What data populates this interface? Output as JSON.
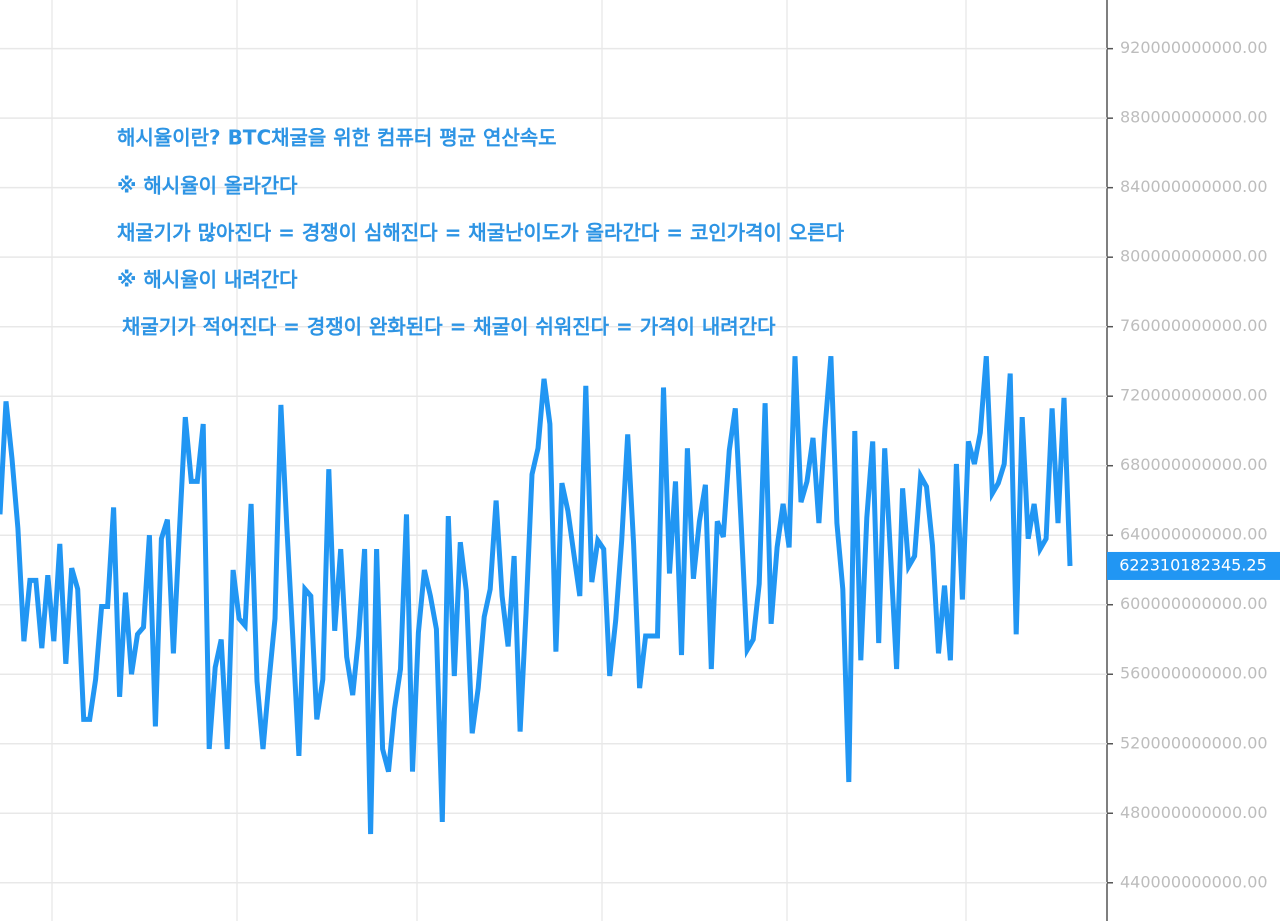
{
  "chart_data": {
    "type": "line",
    "annotations": [
      "해시율이란? BTC채굴을 위한 컴퓨터 평균 연산속도",
      "※ 해시율이 올라간다",
      "채굴기가 많아진다 = 경쟁이 심해진다 = 채굴난이도가 올라간다 = 코인가격이 오른다",
      "※ 해시율이 내려간다",
      "채굴기가 적어진다 = 경쟁이 완화된다 = 채굴이 쉬워진다 = 가격이 내려간다"
    ],
    "categories": [
      null,
      null,
      null,
      null,
      null,
      null,
      null,
      null,
      null,
      null,
      null,
      null,
      null,
      null,
      null,
      null,
      null,
      null,
      null,
      null,
      null,
      null,
      null,
      null,
      null,
      null,
      null,
      null,
      null,
      null,
      null,
      null,
      null,
      null,
      null,
      null,
      null,
      null,
      null,
      null,
      null,
      null,
      null,
      null,
      null,
      null,
      null,
      null,
      null,
      null,
      null,
      null,
      null,
      null,
      null,
      null,
      null,
      null,
      null,
      null,
      null,
      null,
      null,
      null,
      null,
      null,
      null,
      null,
      null,
      null,
      null,
      null,
      null,
      null,
      null,
      null,
      null,
      null,
      null,
      null,
      null,
      null,
      null,
      null,
      null,
      null,
      null,
      null,
      null,
      null,
      null,
      null,
      null,
      null,
      null,
      null,
      null,
      null,
      null,
      null,
      null,
      null,
      null,
      null,
      null,
      null,
      null,
      null,
      null,
      null,
      null,
      null,
      null,
      null,
      null,
      null,
      null,
      null,
      null,
      null,
      null,
      null,
      null,
      null,
      null,
      null,
      null,
      null,
      null,
      null,
      null,
      null,
      null,
      null,
      null,
      null,
      null,
      null,
      null,
      null,
      null,
      null,
      null,
      null,
      null,
      null,
      null,
      null,
      null,
      null,
      null,
      null,
      null,
      null,
      null,
      null,
      null,
      null,
      null,
      null,
      null,
      null,
      null,
      null,
      null,
      null,
      null,
      null,
      null,
      null,
      null,
      null,
      null,
      null,
      null,
      null,
      null,
      null,
      null,
      null
    ],
    "values": [
      652000000000,
      717000000000,
      684000000000,
      644000000000,
      579000000000,
      614000000000,
      614000000000,
      575000000000,
      617000000000,
      579000000000,
      635000000000,
      566000000000,
      621000000000,
      609000000000,
      534000000000,
      534000000000,
      557000000000,
      599000000000,
      599000000000,
      656000000000,
      547000000000,
      607000000000,
      560000000000,
      583000000000,
      587000000000,
      640000000000,
      530000000000,
      638000000000,
      649000000000,
      572000000000,
      641000000000,
      708000000000,
      671000000000,
      671000000000,
      704000000000,
      517000000000,
      564000000000,
      580000000000,
      517000000000,
      620000000000,
      592000000000,
      588000000000,
      658000000000,
      556000000000,
      517000000000,
      556000000000,
      592000000000,
      715000000000,
      644000000000,
      580000000000,
      513000000000,
      609000000000,
      605000000000,
      534000000000,
      557000000000,
      678000000000,
      585000000000,
      632000000000,
      570000000000,
      548000000000,
      582000000000,
      632000000000,
      468000000000,
      632000000000,
      517000000000,
      504000000000,
      540000000000,
      563000000000,
      652000000000,
      504000000000,
      584000000000,
      620000000000,
      605000000000,
      586000000000,
      475000000000,
      651000000000,
      559000000000,
      636000000000,
      608000000000,
      526000000000,
      552000000000,
      593000000000,
      609000000000,
      660000000000,
      605000000000,
      576000000000,
      628000000000,
      527000000000,
      595000000000,
      675000000000,
      690000000000,
      730000000000,
      704000000000,
      573000000000,
      670000000000,
      654000000000,
      629000000000,
      605000000000,
      726000000000,
      613000000000,
      637000000000,
      632000000000,
      559000000000,
      591000000000,
      637000000000,
      698000000000,
      635000000000,
      552000000000,
      582000000000,
      582000000000,
      582000000000,
      725000000000,
      618000000000,
      671000000000,
      571000000000,
      690000000000,
      615000000000,
      648000000000,
      669000000000,
      563000000000,
      648000000000,
      639000000000,
      689000000000,
      713000000000,
      646000000000,
      574000000000,
      580000000000,
      612000000000,
      716000000000,
      589000000000,
      633000000000,
      658000000000,
      633000000000,
      743000000000,
      659000000000,
      671000000000,
      696000000000,
      647000000000,
      701000000000,
      743000000000,
      647000000000,
      609000000000,
      498000000000,
      700000000000,
      568000000000,
      650000000000,
      694000000000,
      578000000000,
      690000000000,
      627000000000,
      563000000000,
      667000000000,
      622000000000,
      628000000000,
      674000000000,
      668000000000,
      634000000000,
      572000000000,
      611000000000,
      568000000000,
      681000000000,
      603000000000,
      694000000000,
      681000000000,
      699000000000,
      743000000000,
      664000000000,
      670000000000,
      681000000000,
      733000000000,
      583000000000,
      708000000000,
      638000000000,
      658000000000,
      632000000000,
      638000000000,
      713000000000,
      647000000000,
      719000000000,
      622310182345.25
    ],
    "color": "#2196f3",
    "ylim": [
      418000000000,
      948000000000
    ],
    "yticks": [
      {
        "value": 440000000000,
        "label": "440000000000.00"
      },
      {
        "value": 480000000000,
        "label": "480000000000.00"
      },
      {
        "value": 520000000000,
        "label": "520000000000.00"
      },
      {
        "value": 560000000000,
        "label": "560000000000.00"
      },
      {
        "value": 600000000000,
        "label": "600000000000.00"
      },
      {
        "value": 640000000000,
        "label": "640000000000.00"
      },
      {
        "value": 680000000000,
        "label": "680000000000.00"
      },
      {
        "value": 720000000000,
        "label": "720000000000.00"
      },
      {
        "value": 760000000000,
        "label": "760000000000.00"
      },
      {
        "value": 800000000000,
        "label": "800000000000.00"
      },
      {
        "value": 840000000000,
        "label": "840000000000.00"
      },
      {
        "value": 880000000000,
        "label": "880000000000.00"
      },
      {
        "value": 920000000000,
        "label": "920000000000.00"
      }
    ],
    "grid": true
  }
}
